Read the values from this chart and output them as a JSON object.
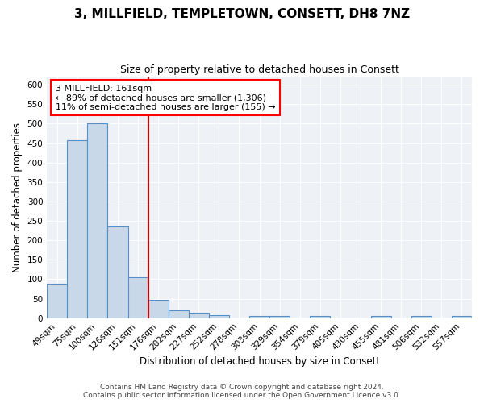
{
  "title": "3, MILLFIELD, TEMPLETOWN, CONSETT, DH8 7NZ",
  "subtitle": "Size of property relative to detached houses in Consett",
  "xlabel": "Distribution of detached houses by size in Consett",
  "ylabel": "Number of detached properties",
  "categories": [
    "49sqm",
    "75sqm",
    "100sqm",
    "126sqm",
    "151sqm",
    "176sqm",
    "202sqm",
    "227sqm",
    "252sqm",
    "278sqm",
    "303sqm",
    "329sqm",
    "354sqm",
    "379sqm",
    "405sqm",
    "430sqm",
    "455sqm",
    "481sqm",
    "506sqm",
    "532sqm",
    "557sqm"
  ],
  "values": [
    88,
    458,
    500,
    235,
    105,
    47,
    20,
    13,
    8,
    0,
    5,
    5,
    0,
    5,
    0,
    0,
    5,
    0,
    5,
    0,
    5
  ],
  "bar_color": "#c8d8e8",
  "bar_edge_color": "#5590c8",
  "bar_edge_width": 0.8,
  "red_line_x": 4.5,
  "red_line_color": "#cc0000",
  "annotation_text": "3 MILLFIELD: 161sqm\n← 89% of detached houses are smaller (1,306)\n11% of semi-detached houses are larger (155) →",
  "ylim": [
    0,
    620
  ],
  "yticks": [
    0,
    50,
    100,
    150,
    200,
    250,
    300,
    350,
    400,
    450,
    500,
    550,
    600
  ],
  "bg_color": "#eef2f7",
  "footer_line1": "Contains HM Land Registry data © Crown copyright and database right 2024.",
  "footer_line2": "Contains public sector information licensed under the Open Government Licence v3.0.",
  "title_fontsize": 11,
  "subtitle_fontsize": 9,
  "axis_label_fontsize": 8.5,
  "tick_fontsize": 7.5,
  "annotation_fontsize": 8,
  "footer_fontsize": 6.5
}
